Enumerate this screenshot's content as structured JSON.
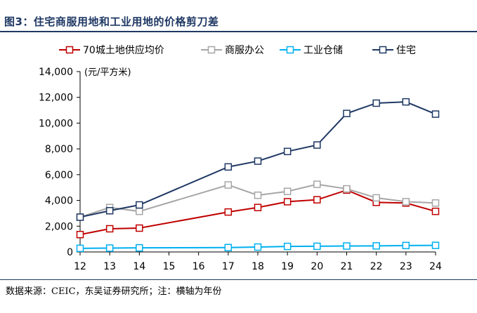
{
  "figure": {
    "title": "图3：住宅商服用地和工业用地的价格剪刀差",
    "source": "数据来源：CEIC，东吴证券研究所；注：横轴为年份"
  },
  "chart_data": {
    "type": "line",
    "title": "",
    "xlabel": "",
    "ylabel": "",
    "y_unit": "(元/平方米)",
    "ylim": [
      0,
      14000
    ],
    "yticks": [
      0,
      2000,
      4000,
      6000,
      8000,
      10000,
      12000,
      14000
    ],
    "ytick_labels": [
      "0",
      "2,000",
      "4,000",
      "6,000",
      "8,000",
      "10,000",
      "12,000",
      "14,000"
    ],
    "xticks": [
      "12",
      "13",
      "14",
      "15",
      "16",
      "17",
      "18",
      "19",
      "20",
      "21",
      "22",
      "23",
      "24"
    ],
    "grid": false,
    "legend_position": "top",
    "series": [
      {
        "name": "70城土地供应均价",
        "color": "#c00000",
        "x": [
          "12",
          "13",
          "14",
          "17",
          "18",
          "19",
          "20",
          "21",
          "22",
          "23",
          "24"
        ],
        "values": [
          1350,
          1800,
          1850,
          3100,
          3450,
          3900,
          4050,
          4800,
          3850,
          3800,
          3150
        ]
      },
      {
        "name": "商服办公",
        "color": "#a6a6a6",
        "x": [
          "12",
          "13",
          "14",
          "17",
          "18",
          "19",
          "20",
          "21",
          "22",
          "23",
          "24"
        ],
        "values": [
          2700,
          3450,
          3150,
          5200,
          4400,
          4700,
          5250,
          4900,
          4200,
          3900,
          3800
        ]
      },
      {
        "name": "工业仓储",
        "color": "#00b0f0",
        "x": [
          "12",
          "13",
          "14",
          "17",
          "18",
          "19",
          "20",
          "21",
          "22",
          "23",
          "24"
        ],
        "values": [
          280,
          300,
          320,
          340,
          380,
          430,
          440,
          460,
          470,
          500,
          510
        ]
      },
      {
        "name": "住宅",
        "color": "#1f3864",
        "x": [
          "12",
          "13",
          "14",
          "17",
          "18",
          "19",
          "20",
          "21",
          "22",
          "23",
          "24"
        ],
        "values": [
          2700,
          3200,
          3650,
          6600,
          7050,
          7800,
          8300,
          10750,
          11550,
          11650,
          10700
        ]
      }
    ]
  }
}
